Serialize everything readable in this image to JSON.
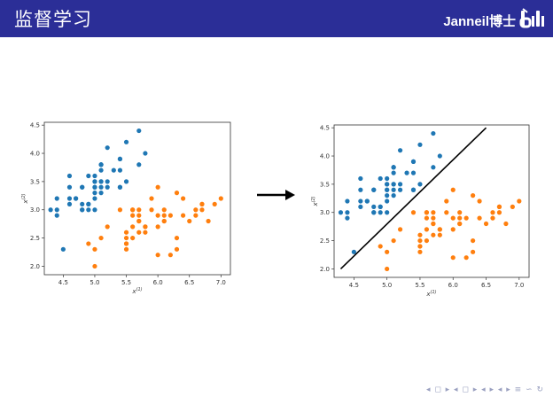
{
  "header": {
    "title": "监督学习",
    "brand": "Janneil博士",
    "background": "#2b2e97",
    "logo_icon": "bilibili-logo"
  },
  "navigation": {
    "symbols": "◂ ◻ ▸ ◂ ◻ ▸ ◂ ▸ ◂ ▸ ≡ ∽ ↻"
  },
  "chart_data": [
    {
      "type": "scatter",
      "xlabel": "x(1)",
      "ylabel": "x(2)",
      "xlim": [
        4.2,
        7.15
      ],
      "ylim": [
        1.85,
        4.55
      ],
      "xticks": [
        "4.5",
        "5.0",
        "5.5",
        "6.0",
        "6.5",
        "7.0"
      ],
      "yticks": [
        "2.0",
        "2.5",
        "3.0",
        "3.5",
        "4.0",
        "4.5"
      ],
      "grid": false,
      "series": [
        {
          "color": "#1f77b4",
          "points": [
            [
              5.1,
              3.5
            ],
            [
              4.9,
              3.0
            ],
            [
              4.7,
              3.2
            ],
            [
              4.6,
              3.1
            ],
            [
              5.0,
              3.6
            ],
            [
              5.4,
              3.9
            ],
            [
              4.6,
              3.4
            ],
            [
              5.0,
              3.4
            ],
            [
              4.4,
              2.9
            ],
            [
              4.9,
              3.1
            ],
            [
              5.4,
              3.7
            ],
            [
              4.8,
              3.4
            ],
            [
              4.8,
              3.0
            ],
            [
              4.3,
              3.0
            ],
            [
              5.8,
              4.0
            ],
            [
              5.7,
              4.4
            ],
            [
              5.4,
              3.9
            ],
            [
              5.1,
              3.5
            ],
            [
              5.7,
              3.8
            ],
            [
              5.1,
              3.8
            ],
            [
              5.4,
              3.4
            ],
            [
              5.1,
              3.7
            ],
            [
              4.6,
              3.6
            ],
            [
              5.1,
              3.3
            ],
            [
              4.8,
              3.4
            ],
            [
              5.0,
              3.0
            ],
            [
              5.0,
              3.4
            ],
            [
              5.2,
              3.5
            ],
            [
              5.2,
              3.4
            ],
            [
              4.7,
              3.2
            ],
            [
              4.8,
              3.1
            ],
            [
              5.4,
              3.4
            ],
            [
              5.2,
              4.1
            ],
            [
              5.5,
              4.2
            ],
            [
              4.9,
              3.1
            ],
            [
              5.0,
              3.2
            ],
            [
              5.5,
              3.5
            ],
            [
              4.9,
              3.6
            ],
            [
              4.4,
              3.0
            ],
            [
              5.1,
              3.4
            ],
            [
              5.0,
              3.5
            ],
            [
              4.5,
              2.3
            ],
            [
              4.4,
              3.2
            ],
            [
              5.0,
              3.5
            ],
            [
              5.1,
              3.8
            ],
            [
              4.8,
              3.0
            ],
            [
              5.1,
              3.8
            ],
            [
              4.6,
              3.2
            ],
            [
              5.3,
              3.7
            ],
            [
              5.0,
              3.3
            ]
          ]
        },
        {
          "color": "#ff7f0e",
          "points": [
            [
              7.0,
              3.2
            ],
            [
              6.4,
              3.2
            ],
            [
              6.9,
              3.1
            ],
            [
              5.5,
              2.3
            ],
            [
              6.5,
              2.8
            ],
            [
              5.7,
              2.8
            ],
            [
              6.3,
              3.3
            ],
            [
              4.9,
              2.4
            ],
            [
              6.6,
              2.9
            ],
            [
              5.2,
              2.7
            ],
            [
              5.0,
              2.0
            ],
            [
              5.9,
              3.0
            ],
            [
              6.0,
              2.2
            ],
            [
              6.1,
              2.9
            ],
            [
              5.6,
              2.9
            ],
            [
              6.7,
              3.1
            ],
            [
              5.6,
              3.0
            ],
            [
              5.8,
              2.7
            ],
            [
              6.2,
              2.2
            ],
            [
              5.6,
              2.5
            ],
            [
              5.9,
              3.2
            ],
            [
              6.1,
              2.8
            ],
            [
              6.3,
              2.5
            ],
            [
              6.1,
              2.8
            ],
            [
              6.4,
              2.9
            ],
            [
              6.6,
              3.0
            ],
            [
              6.8,
              2.8
            ],
            [
              6.7,
              3.0
            ],
            [
              6.0,
              2.9
            ],
            [
              5.7,
              2.6
            ],
            [
              5.5,
              2.4
            ],
            [
              5.5,
              2.4
            ],
            [
              5.8,
              2.7
            ],
            [
              6.0,
              2.7
            ],
            [
              5.4,
              3.0
            ],
            [
              6.0,
              3.4
            ],
            [
              6.7,
              3.1
            ],
            [
              6.3,
              2.3
            ],
            [
              5.6,
              3.0
            ],
            [
              5.5,
              2.5
            ],
            [
              5.5,
              2.6
            ],
            [
              6.1,
              3.0
            ],
            [
              5.8,
              2.6
            ],
            [
              5.0,
              2.3
            ],
            [
              5.6,
              2.7
            ],
            [
              5.7,
              3.0
            ],
            [
              5.7,
              2.9
            ],
            [
              6.2,
              2.9
            ],
            [
              5.1,
              2.5
            ],
            [
              5.7,
              2.8
            ]
          ]
        }
      ]
    },
    {
      "type": "scatter",
      "xlabel": "x(1)",
      "ylabel": "x(2)",
      "xlim": [
        4.2,
        7.15
      ],
      "ylim": [
        1.85,
        4.55
      ],
      "xticks": [
        "4.5",
        "5.0",
        "5.5",
        "6.0",
        "6.5",
        "7.0"
      ],
      "yticks": [
        "2.0",
        "2.5",
        "3.0",
        "3.5",
        "4.0",
        "4.5"
      ],
      "grid": false,
      "decision_line": {
        "color": "#000000",
        "from": [
          4.3,
          2.0
        ],
        "to": [
          6.5,
          4.5
        ]
      },
      "series": [
        {
          "color": "#1f77b4",
          "points": [
            [
              5.1,
              3.5
            ],
            [
              4.9,
              3.0
            ],
            [
              4.7,
              3.2
            ],
            [
              4.6,
              3.1
            ],
            [
              5.0,
              3.6
            ],
            [
              5.4,
              3.9
            ],
            [
              4.6,
              3.4
            ],
            [
              5.0,
              3.4
            ],
            [
              4.4,
              2.9
            ],
            [
              4.9,
              3.1
            ],
            [
              5.4,
              3.7
            ],
            [
              4.8,
              3.4
            ],
            [
              4.8,
              3.0
            ],
            [
              4.3,
              3.0
            ],
            [
              5.8,
              4.0
            ],
            [
              5.7,
              4.4
            ],
            [
              5.4,
              3.9
            ],
            [
              5.1,
              3.5
            ],
            [
              5.7,
              3.8
            ],
            [
              5.1,
              3.8
            ],
            [
              5.4,
              3.4
            ],
            [
              5.1,
              3.7
            ],
            [
              4.6,
              3.6
            ],
            [
              5.1,
              3.3
            ],
            [
              4.8,
              3.4
            ],
            [
              5.0,
              3.0
            ],
            [
              5.0,
              3.4
            ],
            [
              5.2,
              3.5
            ],
            [
              5.2,
              3.4
            ],
            [
              4.7,
              3.2
            ],
            [
              4.8,
              3.1
            ],
            [
              5.4,
              3.4
            ],
            [
              5.2,
              4.1
            ],
            [
              5.5,
              4.2
            ],
            [
              4.9,
              3.1
            ],
            [
              5.0,
              3.2
            ],
            [
              5.5,
              3.5
            ],
            [
              4.9,
              3.6
            ],
            [
              4.4,
              3.0
            ],
            [
              5.1,
              3.4
            ],
            [
              5.0,
              3.5
            ],
            [
              4.5,
              2.3
            ],
            [
              4.4,
              3.2
            ],
            [
              5.0,
              3.5
            ],
            [
              5.1,
              3.8
            ],
            [
              4.8,
              3.0
            ],
            [
              5.1,
              3.8
            ],
            [
              4.6,
              3.2
            ],
            [
              5.3,
              3.7
            ],
            [
              5.0,
              3.3
            ]
          ]
        },
        {
          "color": "#ff7f0e",
          "points": [
            [
              7.0,
              3.2
            ],
            [
              6.4,
              3.2
            ],
            [
              6.9,
              3.1
            ],
            [
              5.5,
              2.3
            ],
            [
              6.5,
              2.8
            ],
            [
              5.7,
              2.8
            ],
            [
              6.3,
              3.3
            ],
            [
              4.9,
              2.4
            ],
            [
              6.6,
              2.9
            ],
            [
              5.2,
              2.7
            ],
            [
              5.0,
              2.0
            ],
            [
              5.9,
              3.0
            ],
            [
              6.0,
              2.2
            ],
            [
              6.1,
              2.9
            ],
            [
              5.6,
              2.9
            ],
            [
              6.7,
              3.1
            ],
            [
              5.6,
              3.0
            ],
            [
              5.8,
              2.7
            ],
            [
              6.2,
              2.2
            ],
            [
              5.6,
              2.5
            ],
            [
              5.9,
              3.2
            ],
            [
              6.1,
              2.8
            ],
            [
              6.3,
              2.5
            ],
            [
              6.1,
              2.8
            ],
            [
              6.4,
              2.9
            ],
            [
              6.6,
              3.0
            ],
            [
              6.8,
              2.8
            ],
            [
              6.7,
              3.0
            ],
            [
              6.0,
              2.9
            ],
            [
              5.7,
              2.6
            ],
            [
              5.5,
              2.4
            ],
            [
              5.5,
              2.4
            ],
            [
              5.8,
              2.7
            ],
            [
              6.0,
              2.7
            ],
            [
              5.4,
              3.0
            ],
            [
              6.0,
              3.4
            ],
            [
              6.7,
              3.1
            ],
            [
              6.3,
              2.3
            ],
            [
              5.6,
              3.0
            ],
            [
              5.5,
              2.5
            ],
            [
              5.5,
              2.6
            ],
            [
              6.1,
              3.0
            ],
            [
              5.8,
              2.6
            ],
            [
              5.0,
              2.3
            ],
            [
              5.6,
              2.7
            ],
            [
              5.7,
              3.0
            ],
            [
              5.7,
              2.9
            ],
            [
              6.2,
              2.9
            ],
            [
              5.1,
              2.5
            ],
            [
              5.7,
              2.8
            ]
          ]
        }
      ]
    }
  ]
}
